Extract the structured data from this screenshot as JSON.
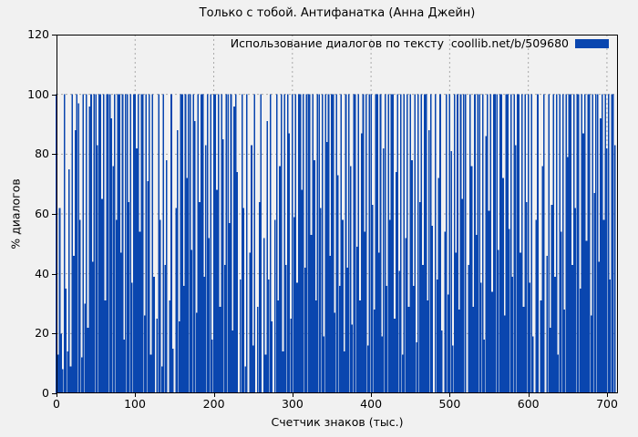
{
  "colors": {
    "background": "#f1f1f1",
    "bar": "#0a46af",
    "grid": "#a9a9a9",
    "frame": "#000000",
    "text": "#000000"
  },
  "chart_data": {
    "type": "bar",
    "title": "Только с тобой. Антифанатка (Анна Джейн)",
    "xlabel": "Счетчик знаков (тыс.)",
    "ylabel": "% диалогов",
    "legend": {
      "label": "Использование диалогов по тексту  coollib.net/b/509680",
      "position": "top-right",
      "swatch_color": "#0a46af"
    },
    "xlim": [
      0,
      714
    ],
    "ylim": [
      0,
      120
    ],
    "x_ticks": [
      0,
      100,
      200,
      300,
      400,
      500,
      600,
      700
    ],
    "y_ticks": [
      0,
      20,
      40,
      60,
      80,
      100,
      120
    ],
    "grid": true,
    "bar_color": "#0a46af",
    "x_start": 0,
    "x_step": 2,
    "values": [
      100,
      13,
      62,
      20,
      8,
      100,
      35,
      14,
      75,
      9,
      100,
      46,
      88,
      100,
      97,
      58,
      12,
      100,
      30,
      100,
      22,
      96,
      100,
      44,
      100,
      100,
      83,
      100,
      100,
      65,
      100,
      31,
      100,
      100,
      100,
      92,
      76,
      100,
      58,
      100,
      100,
      47,
      100,
      18,
      100,
      100,
      64,
      100,
      37,
      100,
      100,
      82,
      100,
      54,
      100,
      100,
      26,
      100,
      71,
      100,
      13,
      100,
      39,
      0,
      25,
      100,
      58,
      9,
      100,
      43,
      78,
      0,
      31,
      100,
      15,
      0,
      62,
      88,
      24,
      100,
      100,
      36,
      100,
      72,
      100,
      100,
      48,
      100,
      91,
      27,
      100,
      64,
      100,
      100,
      39,
      83,
      100,
      52,
      100,
      18,
      100,
      100,
      68,
      100,
      29,
      100,
      85,
      43,
      100,
      100,
      57,
      100,
      21,
      96,
      100,
      74,
      0,
      38,
      100,
      62,
      9,
      100,
      0,
      47,
      83,
      16,
      100,
      0,
      29,
      64,
      100,
      0,
      52,
      13,
      91,
      38,
      100,
      24,
      0,
      58,
      100,
      31,
      76,
      100,
      14,
      100,
      43,
      100,
      87,
      25,
      100,
      59,
      100,
      37,
      100,
      100,
      68,
      100,
      42,
      100,
      100,
      100,
      53,
      100,
      78,
      31,
      100,
      100,
      62,
      100,
      19,
      100,
      84,
      100,
      46,
      100,
      100,
      27,
      100,
      73,
      36,
      100,
      58,
      14,
      100,
      42,
      100,
      76,
      23,
      100,
      100,
      49,
      100,
      31,
      87,
      100,
      54,
      100,
      16,
      100,
      100,
      63,
      28,
      100,
      100,
      47,
      100,
      19,
      82,
      100,
      36,
      100,
      58,
      100,
      100,
      25,
      74,
      100,
      41,
      100,
      13,
      100,
      52,
      100,
      29,
      100,
      78,
      36,
      100,
      17,
      100,
      64,
      100,
      43,
      100,
      100,
      31,
      88,
      100,
      56,
      0,
      100,
      38,
      72,
      100,
      21,
      0,
      54,
      100,
      33,
      100,
      81,
      16,
      100,
      47,
      100,
      28,
      100,
      65,
      100,
      100,
      0,
      43,
      100,
      76,
      29,
      100,
      53,
      100,
      100,
      37,
      100,
      18,
      86,
      100,
      61,
      100,
      34,
      100,
      100,
      100,
      48,
      100,
      100,
      72,
      26,
      100,
      100,
      55,
      100,
      39,
      100,
      83,
      100,
      100,
      47,
      100,
      29,
      100,
      64,
      100,
      37,
      100,
      19,
      0,
      58,
      100,
      0,
      31,
      76,
      100,
      0,
      46,
      100,
      22,
      63,
      100,
      39,
      100,
      13,
      100,
      54,
      100,
      28,
      100,
      79,
      100,
      100,
      43,
      100,
      62,
      100,
      100,
      35,
      100,
      87,
      100,
      51,
      100,
      100,
      26,
      100,
      67,
      100,
      100,
      44,
      92,
      100,
      58,
      100,
      82,
      100,
      38,
      100,
      100,
      83
    ]
  }
}
